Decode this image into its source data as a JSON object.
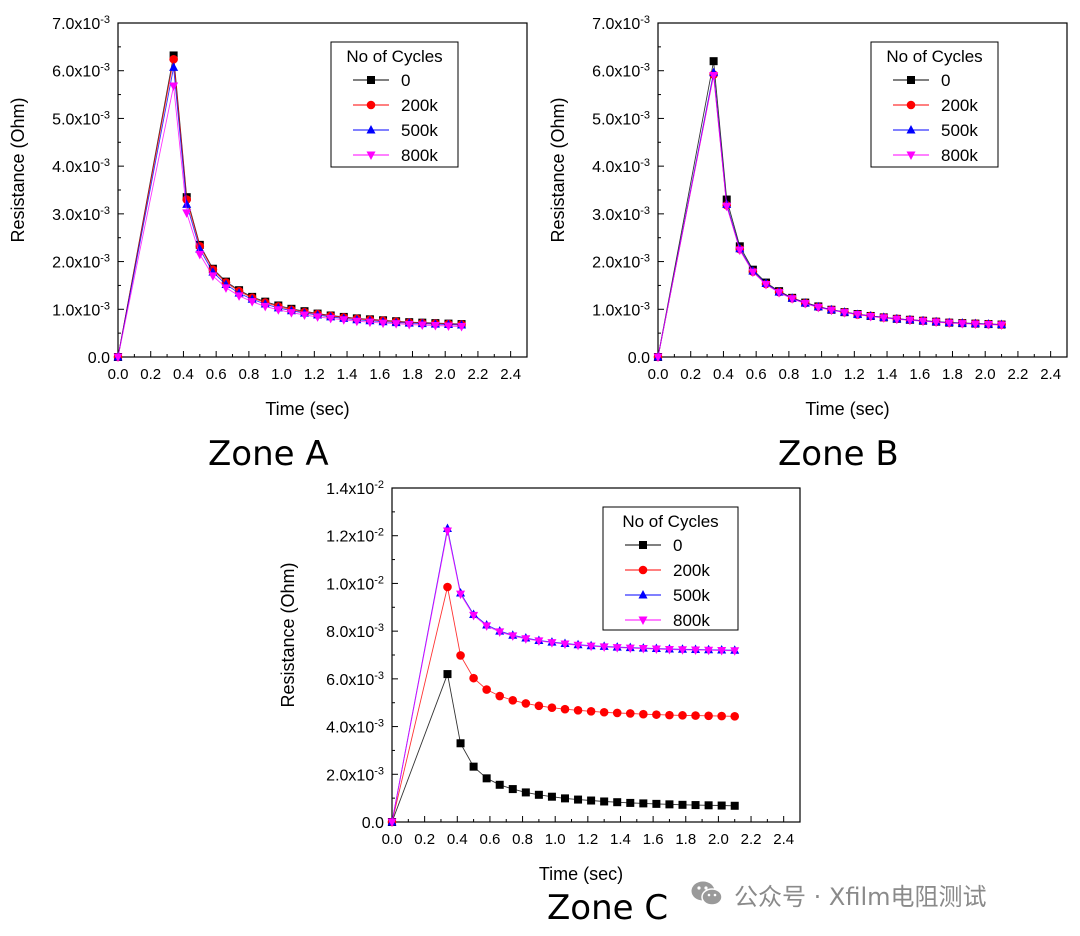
{
  "chart_data": [
    {
      "type": "line",
      "panel_label": "Zone A",
      "xlabel": "Time (sec)",
      "ylabel": "Resistance (Ohm)",
      "xlim": [
        0,
        2.5
      ],
      "ylim": [
        0,
        0.007
      ],
      "x_ticks": [
        "0.0",
        "0.2",
        "0.4",
        "0.6",
        "0.8",
        "1.0",
        "1.2",
        "1.4",
        "1.6",
        "1.8",
        "2.0",
        "2.2",
        "2.4"
      ],
      "y_ticks": [
        {
          "mantissa": "0.0",
          "exp": ""
        },
        {
          "mantissa": "1.0x10",
          "exp": "-3"
        },
        {
          "mantissa": "2.0x10",
          "exp": "-3"
        },
        {
          "mantissa": "3.0x10",
          "exp": "-3"
        },
        {
          "mantissa": "4.0x10",
          "exp": "-3"
        },
        {
          "mantissa": "5.0x10",
          "exp": "-3"
        },
        {
          "mantissa": "6.0x10",
          "exp": "-3"
        },
        {
          "mantissa": "7.0x10",
          "exp": "-3"
        }
      ],
      "legend_title": "No of Cycles",
      "legend_position": "top-right",
      "grid": false,
      "x": [
        0,
        0.34,
        0.42,
        0.5,
        0.58,
        0.66,
        0.74,
        0.82,
        0.9,
        0.98,
        1.06,
        1.14,
        1.22,
        1.3,
        1.38,
        1.46,
        1.54,
        1.62,
        1.7,
        1.78,
        1.86,
        1.94,
        2.02,
        2.1
      ],
      "series": [
        {
          "name": "0",
          "color": "#000000",
          "marker": "square",
          "values": [
            0,
            0.00632,
            0.00335,
            0.00235,
            0.00185,
            0.00158,
            0.0014,
            0.00126,
            0.00116,
            0.00108,
            0.00101,
            0.00096,
            0.00091,
            0.00087,
            0.00084,
            0.00081,
            0.00079,
            0.00077,
            0.00075,
            0.00073,
            0.00072,
            0.00071,
            0.0007,
            0.00069
          ]
        },
        {
          "name": "200k",
          "color": "#ff0000",
          "marker": "circle",
          "values": [
            0,
            0.00624,
            0.0033,
            0.00232,
            0.00183,
            0.00156,
            0.00138,
            0.00124,
            0.00114,
            0.00106,
            0.00099,
            0.00094,
            0.0009,
            0.00086,
            0.00083,
            0.0008,
            0.00078,
            0.00076,
            0.00074,
            0.00072,
            0.00071,
            0.0007,
            0.00069,
            0.00068
          ]
        },
        {
          "name": "500k",
          "color": "#0000ff",
          "marker": "triangle-up",
          "values": [
            0,
            0.00607,
            0.0032,
            0.00226,
            0.00178,
            0.00152,
            0.00134,
            0.00121,
            0.00111,
            0.00103,
            0.00097,
            0.00092,
            0.00088,
            0.00084,
            0.00081,
            0.00078,
            0.00076,
            0.00074,
            0.00072,
            0.00071,
            0.0007,
            0.00069,
            0.00068,
            0.00067
          ]
        },
        {
          "name": "800k",
          "color": "#ff00ff",
          "marker": "triangle-down",
          "values": [
            0,
            0.00568,
            0.00302,
            0.00215,
            0.0017,
            0.00145,
            0.00128,
            0.00116,
            0.00106,
            0.00099,
            0.00093,
            0.00088,
            0.00084,
            0.00081,
            0.00078,
            0.00075,
            0.00073,
            0.00071,
            0.0007,
            0.00068,
            0.00067,
            0.00066,
            0.00065,
            0.00064
          ]
        }
      ]
    },
    {
      "type": "line",
      "panel_label": "Zone B",
      "xlabel": "Time (sec)",
      "ylabel": "Resistance (Ohm)",
      "xlim": [
        0,
        2.5
      ],
      "ylim": [
        0,
        0.007
      ],
      "x_ticks": [
        "0.0",
        "0.2",
        "0.4",
        "0.6",
        "0.8",
        "1.0",
        "1.2",
        "1.4",
        "1.6",
        "1.8",
        "2.0",
        "2.2",
        "2.4"
      ],
      "y_ticks": [
        {
          "mantissa": "0.0",
          "exp": ""
        },
        {
          "mantissa": "1.0x10",
          "exp": "-3"
        },
        {
          "mantissa": "2.0x10",
          "exp": "-3"
        },
        {
          "mantissa": "3.0x10",
          "exp": "-3"
        },
        {
          "mantissa": "4.0x10",
          "exp": "-3"
        },
        {
          "mantissa": "5.0x10",
          "exp": "-3"
        },
        {
          "mantissa": "6.0x10",
          "exp": "-3"
        },
        {
          "mantissa": "7.0x10",
          "exp": "-3"
        }
      ],
      "legend_title": "No of Cycles",
      "legend_position": "top-right",
      "grid": false,
      "x": [
        0,
        0.34,
        0.42,
        0.5,
        0.58,
        0.66,
        0.74,
        0.82,
        0.9,
        0.98,
        1.06,
        1.14,
        1.22,
        1.3,
        1.38,
        1.46,
        1.54,
        1.62,
        1.7,
        1.78,
        1.86,
        1.94,
        2.02,
        2.1
      ],
      "series": [
        {
          "name": "0",
          "color": "#000000",
          "marker": "square",
          "values": [
            0,
            0.0062,
            0.0033,
            0.00232,
            0.00183,
            0.00156,
            0.00138,
            0.00124,
            0.00114,
            0.00106,
            0.00099,
            0.00094,
            0.0009,
            0.00086,
            0.00083,
            0.0008,
            0.00078,
            0.00076,
            0.00074,
            0.00072,
            0.00071,
            0.0007,
            0.00069,
            0.00068
          ]
        },
        {
          "name": "200k",
          "color": "#ff0000",
          "marker": "circle",
          "values": [
            0,
            0.00592,
            0.00318,
            0.00226,
            0.00179,
            0.00153,
            0.00136,
            0.00123,
            0.00113,
            0.00105,
            0.00099,
            0.00094,
            0.00089,
            0.00086,
            0.00083,
            0.0008,
            0.00078,
            0.00076,
            0.00074,
            0.00072,
            0.00071,
            0.0007,
            0.00069,
            0.00068
          ]
        },
        {
          "name": "500k",
          "color": "#0000ff",
          "marker": "triangle-up",
          "values": [
            0,
            0.00596,
            0.0032,
            0.00227,
            0.0018,
            0.00154,
            0.00136,
            0.00123,
            0.00113,
            0.00105,
            0.00099,
            0.00094,
            0.00089,
            0.00086,
            0.00083,
            0.0008,
            0.00078,
            0.00076,
            0.00074,
            0.00072,
            0.00071,
            0.0007,
            0.00069,
            0.00068
          ]
        },
        {
          "name": "800k",
          "color": "#ff00ff",
          "marker": "triangle-down",
          "values": [
            0,
            0.0059,
            0.00316,
            0.00224,
            0.00178,
            0.00152,
            0.00135,
            0.00122,
            0.00112,
            0.00104,
            0.00098,
            0.00093,
            0.00089,
            0.00085,
            0.00082,
            0.00079,
            0.00077,
            0.00075,
            0.00073,
            0.00071,
            0.0007,
            0.00069,
            0.00068,
            0.00067
          ]
        }
      ]
    },
    {
      "type": "line",
      "panel_label": "Zone C",
      "xlabel": "Time (sec)",
      "ylabel": "Resistance (Ohm)",
      "xlim": [
        0,
        2.5
      ],
      "ylim": [
        0,
        0.014
      ],
      "x_ticks": [
        "0.0",
        "0.2",
        "0.4",
        "0.6",
        "0.8",
        "1.0",
        "1.2",
        "1.4",
        "1.6",
        "1.8",
        "2.0",
        "2.2",
        "2.4"
      ],
      "y_ticks": [
        {
          "mantissa": "0.0",
          "exp": ""
        },
        {
          "mantissa": "2.0x10",
          "exp": "-3"
        },
        {
          "mantissa": "4.0x10",
          "exp": "-3"
        },
        {
          "mantissa": "6.0x10",
          "exp": "-3"
        },
        {
          "mantissa": "8.0x10",
          "exp": "-3"
        },
        {
          "mantissa": "1.0x10",
          "exp": "-2"
        },
        {
          "mantissa": "1.2x10",
          "exp": "-2"
        },
        {
          "mantissa": "1.4x10",
          "exp": "-2"
        }
      ],
      "legend_title": "No of Cycles",
      "legend_position": "top-right",
      "grid": false,
      "x": [
        0,
        0.34,
        0.42,
        0.5,
        0.58,
        0.66,
        0.74,
        0.82,
        0.9,
        0.98,
        1.06,
        1.14,
        1.22,
        1.3,
        1.38,
        1.46,
        1.54,
        1.62,
        1.7,
        1.78,
        1.86,
        1.94,
        2.02,
        2.1
      ],
      "series": [
        {
          "name": "0",
          "color": "#000000",
          "marker": "square",
          "values": [
            0,
            0.0062,
            0.0033,
            0.00232,
            0.00183,
            0.00156,
            0.00138,
            0.00124,
            0.00114,
            0.00106,
            0.00099,
            0.00094,
            0.0009,
            0.00086,
            0.00083,
            0.0008,
            0.00078,
            0.00076,
            0.00074,
            0.00072,
            0.00071,
            0.0007,
            0.00069,
            0.00068
          ]
        },
        {
          "name": "200k",
          "color": "#ff0000",
          "marker": "circle",
          "values": [
            0,
            0.00985,
            0.00698,
            0.00603,
            0.00555,
            0.00528,
            0.0051,
            0.00497,
            0.00487,
            0.00479,
            0.00473,
            0.00468,
            0.00464,
            0.0046,
            0.00457,
            0.00455,
            0.00452,
            0.0045,
            0.00448,
            0.00447,
            0.00446,
            0.00445,
            0.00444,
            0.00443
          ]
        },
        {
          "name": "500k",
          "color": "#0000ff",
          "marker": "triangle-up",
          "values": [
            0,
            0.0123,
            0.0096,
            0.0087,
            0.00826,
            0.008,
            0.00783,
            0.00771,
            0.00761,
            0.00754,
            0.00748,
            0.00743,
            0.00739,
            0.00736,
            0.00733,
            0.00731,
            0.00729,
            0.00727,
            0.00725,
            0.00724,
            0.00723,
            0.00722,
            0.00721,
            0.0072
          ]
        },
        {
          "name": "800k",
          "color": "#ff00ff",
          "marker": "triangle-down",
          "values": [
            0,
            0.0122,
            0.00955,
            0.00866,
            0.00822,
            0.00797,
            0.0078,
            0.00768,
            0.00759,
            0.00752,
            0.00746,
            0.00741,
            0.00737,
            0.00734,
            0.00731,
            0.00729,
            0.00727,
            0.00725,
            0.00723,
            0.00722,
            0.00721,
            0.0072,
            0.00719,
            0.00718
          ]
        }
      ]
    }
  ],
  "watermark": {
    "icon": "wechat-icon",
    "text": "公众号 · Xfilm电阻测试"
  }
}
